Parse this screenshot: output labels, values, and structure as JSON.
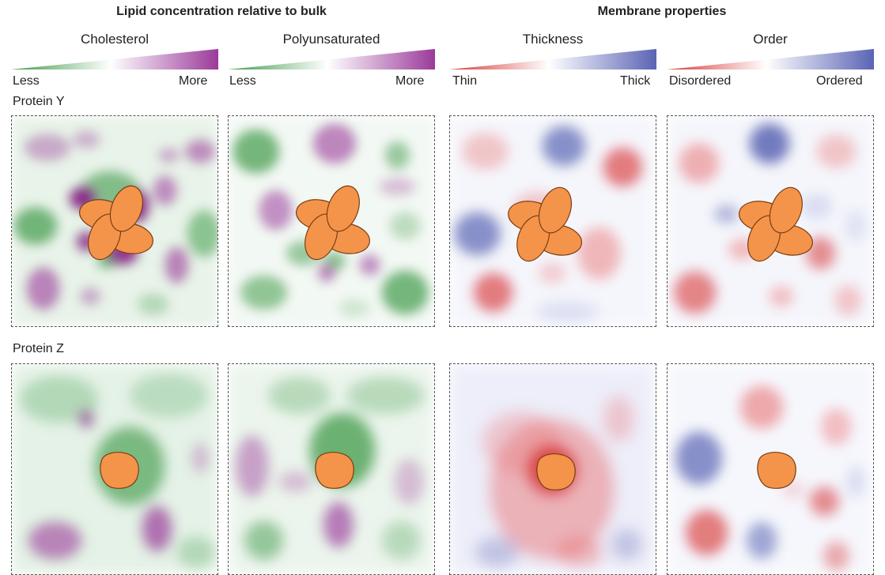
{
  "headers": {
    "lipid": "Lipid concentration relative to bulk",
    "membrane": "Membrane properties"
  },
  "columns": [
    {
      "title": "Cholesterol",
      "low": "Less",
      "high": "More",
      "low_color": "#3f9a48",
      "high_color": "#9a3a9a"
    },
    {
      "title": "Polyunsaturated",
      "low": "Less",
      "high": "More",
      "low_color": "#3f9a48",
      "high_color": "#9a3a9a"
    },
    {
      "title": "Thickness",
      "low": "Thin",
      "high": "Thick",
      "low_color": "#d83a3a",
      "high_color": "#5a64b4"
    },
    {
      "title": "Order",
      "low": "Disordered",
      "high": "Ordered",
      "low_color": "#d83a3a",
      "high_color": "#5a64b4"
    }
  ],
  "rows": [
    {
      "label": "Protein Y",
      "protein_shape": "four-lobed-protein"
    },
    {
      "label": "Protein Z",
      "protein_shape": "single-lobed-protein"
    }
  ],
  "protein_color": "#f4944a"
}
